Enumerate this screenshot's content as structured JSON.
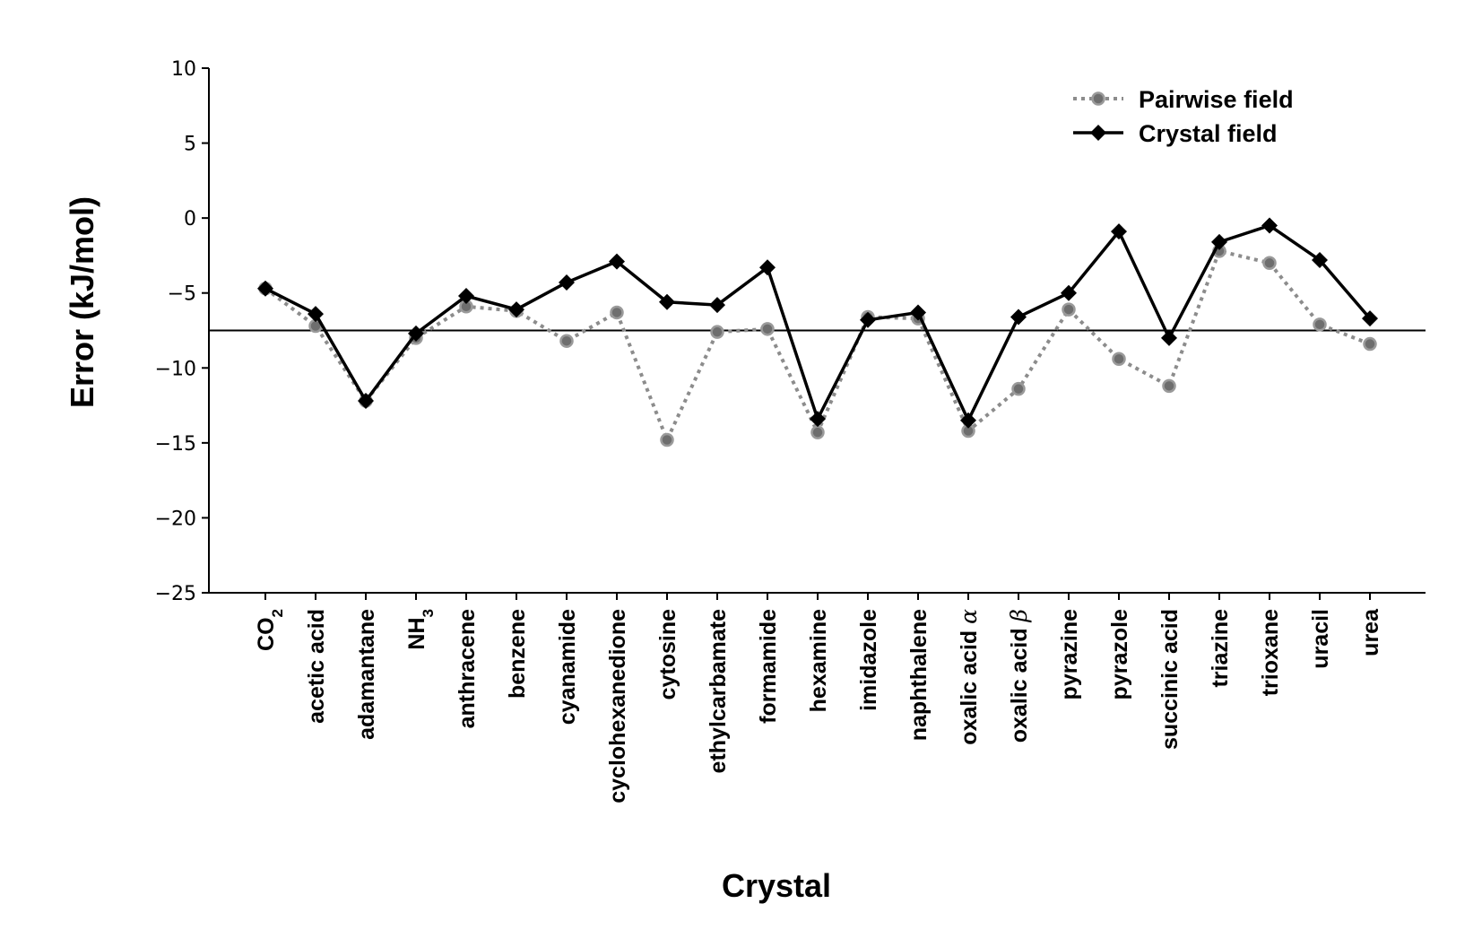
{
  "chart_data": {
    "type": "line",
    "title": "",
    "xlabel": "Crystal",
    "ylabel": "Error (kJ/mol)",
    "ylim": [
      -25,
      10
    ],
    "yticks": [
      10,
      5,
      0,
      -5,
      -10,
      -15,
      -20,
      -25
    ],
    "ytick_labels": [
      "10",
      "5",
      "0",
      "−5",
      "−10",
      "−15",
      "−20",
      "−25"
    ],
    "grid": false,
    "legend_position": "top-right",
    "categories": [
      {
        "base": "CO",
        "sub": "2",
        "suffix": ""
      },
      {
        "base": "acetic acid",
        "sub": "",
        "suffix": ""
      },
      {
        "base": "adamantane",
        "sub": "",
        "suffix": ""
      },
      {
        "base": "NH",
        "sub": "3",
        "suffix": ""
      },
      {
        "base": "anthracene",
        "sub": "",
        "suffix": ""
      },
      {
        "base": "benzene",
        "sub": "",
        "suffix": ""
      },
      {
        "base": "cyanamide",
        "sub": "",
        "suffix": ""
      },
      {
        "base": "cyclohexanedione",
        "sub": "",
        "suffix": ""
      },
      {
        "base": "cytosine",
        "sub": "",
        "suffix": ""
      },
      {
        "base": "ethylcarbamate",
        "sub": "",
        "suffix": ""
      },
      {
        "base": "formamide",
        "sub": "",
        "suffix": ""
      },
      {
        "base": "hexamine",
        "sub": "",
        "suffix": ""
      },
      {
        "base": "imidazole",
        "sub": "",
        "suffix": ""
      },
      {
        "base": "naphthalene",
        "sub": "",
        "suffix": ""
      },
      {
        "base": "oxalic acid ",
        "sub": "",
        "suffix": "α"
      },
      {
        "base": "oxalic acid ",
        "sub": "",
        "suffix": "β"
      },
      {
        "base": "pyrazine",
        "sub": "",
        "suffix": ""
      },
      {
        "base": "pyrazole",
        "sub": "",
        "suffix": ""
      },
      {
        "base": "succinic acid",
        "sub": "",
        "suffix": ""
      },
      {
        "base": "triazine",
        "sub": "",
        "suffix": ""
      },
      {
        "base": "trioxane",
        "sub": "",
        "suffix": ""
      },
      {
        "base": "uracil",
        "sub": "",
        "suffix": ""
      },
      {
        "base": "urea",
        "sub": "",
        "suffix": ""
      }
    ],
    "series": [
      {
        "name": "Pairwise field",
        "color": "#8c8c8c",
        "style": "dotted",
        "marker": "circle",
        "values": [
          -4.7,
          -7.2,
          -12.2,
          -8.0,
          -5.9,
          -6.2,
          -8.2,
          -6.3,
          -14.8,
          -7.6,
          -7.4,
          -14.3,
          -6.6,
          -6.7,
          -14.2,
          -11.4,
          -6.1,
          -9.4,
          -11.2,
          -2.2,
          -3.0,
          -7.1,
          -8.4
        ]
      },
      {
        "name": "Crystal field",
        "color": "#000000",
        "style": "solid",
        "marker": "diamond",
        "values": [
          -4.7,
          -6.4,
          -12.2,
          -7.7,
          -5.2,
          -6.1,
          -4.3,
          -2.9,
          -5.6,
          -5.8,
          -3.3,
          -13.4,
          -6.8,
          -6.3,
          -13.5,
          -6.6,
          -5.0,
          -0.9,
          -8.0,
          -1.6,
          -0.5,
          -2.8,
          -6.7
        ]
      }
    ],
    "reference_line": {
      "y": -7.5,
      "color": "#000000"
    }
  }
}
